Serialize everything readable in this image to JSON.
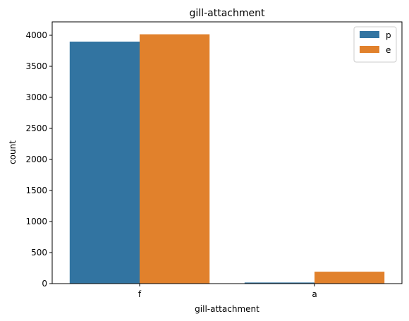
{
  "chart_data": {
    "type": "bar",
    "title": "gill-attachment",
    "xlabel": "gill-attachment",
    "ylabel": "count",
    "categories": [
      "f",
      "a"
    ],
    "series": [
      {
        "name": "p",
        "color": "#3274a1",
        "values": [
          3898,
          18
        ]
      },
      {
        "name": "e",
        "color": "#e1812c",
        "values": [
          4016,
          192
        ]
      }
    ],
    "ylim": [
      0,
      4216
    ],
    "yticks": [
      0,
      500,
      1000,
      1500,
      2000,
      2500,
      3000,
      3500,
      4000
    ],
    "legend": "top-right"
  }
}
